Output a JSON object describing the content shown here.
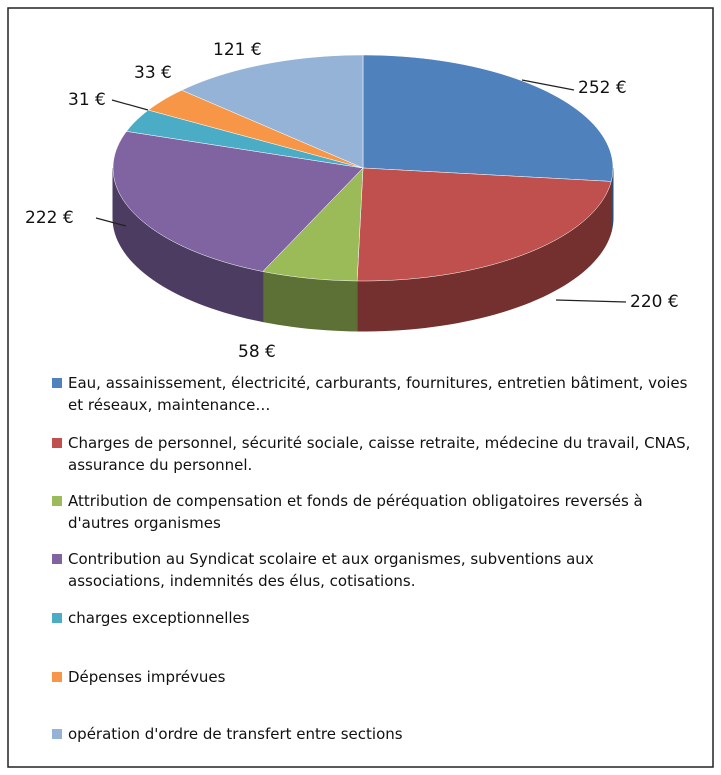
{
  "chart_data": {
    "type": "pie3d",
    "categories": [
      "Eau, assainissement, électricité, carburants, fournitures, entretien bâtiment, voies et réseaux, maintenance…",
      "Charges de personnel, sécurité sociale, caisse retraite, médecine du travail, CNAS, assurance du personnel.",
      "Attribution de compensation et fonds de péréquation obligatoires reversés à d'autres organismes",
      "Contribution au Syndicat scolaire et aux organismes, subventions aux associations, indemnités des élus, cotisations.",
      "charges exceptionnelles",
      "Dépenses imprévues",
      "opération d'ordre de transfert entre sections"
    ],
    "values": [
      252,
      220,
      58,
      222,
      31,
      33,
      121
    ],
    "value_labels": [
      "252 €",
      "220 €",
      "58 €",
      "222 €",
      "31 €",
      "33 €",
      "121 €"
    ],
    "colors": [
      "#4f81bd",
      "#c0504d",
      "#9bbb59",
      "#8064a2",
      "#4bacc6",
      "#f79646",
      "#95b3d7"
    ]
  }
}
